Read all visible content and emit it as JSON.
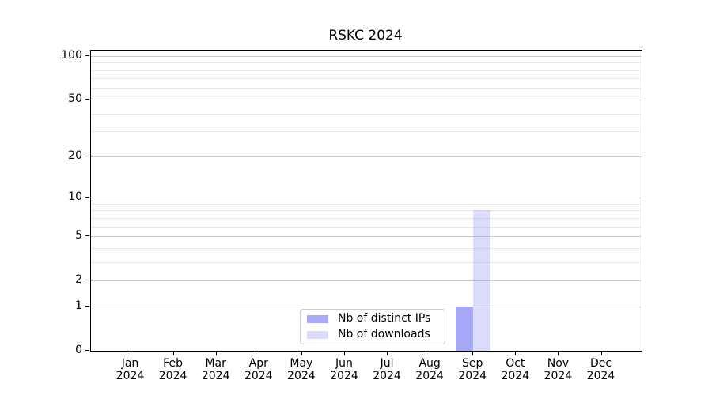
{
  "figure": {
    "title": "RSKC 2024"
  },
  "chart_data": {
    "type": "bar",
    "title": "RSKC 2024",
    "x_categories": [
      "Jan",
      "Feb",
      "Mar",
      "Apr",
      "May",
      "Jun",
      "Jul",
      "Aug",
      "Sep",
      "Oct",
      "Nov",
      "Dec"
    ],
    "x_year": "2024",
    "series": [
      {
        "name": "Nb of distinct IPs",
        "color": "#aaaaf8",
        "bar_fill": "rgba(133,133,244,0.72)",
        "values": [
          0,
          0,
          0,
          0,
          0,
          0,
          0,
          0,
          1,
          0,
          0,
          0
        ]
      },
      {
        "name": "Nb of downloads",
        "color": "#dcdcfa",
        "bar_fill": "rgba(156,156,240,0.36)",
        "values": [
          0,
          0,
          0,
          0,
          0,
          0,
          0,
          0,
          8,
          0,
          0,
          0
        ]
      }
    ],
    "y_scale": "log10(1+value)",
    "y_major_ticks": [
      0,
      1,
      2,
      5,
      10,
      20,
      50,
      100
    ],
    "y_minor_gridlines": [
      3,
      4,
      6,
      7,
      8,
      9,
      30,
      40,
      60,
      70,
      80,
      90
    ],
    "ylim": [
      0,
      109
    ],
    "grid": {
      "major_color": "#c9c9c9",
      "minor_color": "#e9e9e9"
    },
    "legend_position": "inside-bottom-center"
  }
}
